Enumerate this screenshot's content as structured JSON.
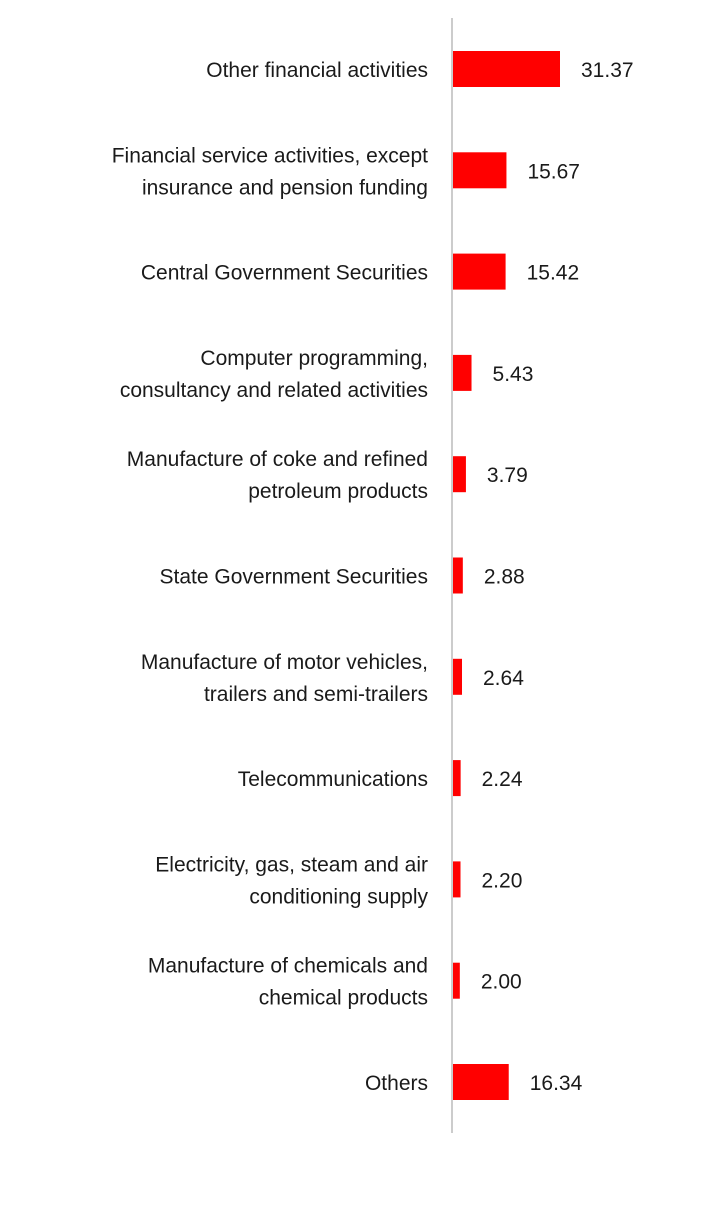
{
  "chart_data": {
    "type": "bar",
    "orientation": "horizontal",
    "categories": [
      [
        "Other financial activities"
      ],
      [
        "Financial service activities, except",
        "insurance and pension funding"
      ],
      [
        "Central Government Securities"
      ],
      [
        "Computer programming,",
        "consultancy and related activities"
      ],
      [
        "Manufacture of coke and refined",
        "petroleum products"
      ],
      [
        "State Government Securities"
      ],
      [
        "Manufacture of motor vehicles,",
        "trailers and semi-trailers"
      ],
      [
        "Telecommunications"
      ],
      [
        "Electricity, gas, steam and air",
        "conditioning supply"
      ],
      [
        "Manufacture of chemicals and",
        "chemical products"
      ],
      [
        "Others"
      ]
    ],
    "values": [
      31.37,
      15.67,
      15.42,
      5.43,
      3.79,
      2.88,
      2.64,
      2.24,
      2.2,
      2.0,
      16.34
    ],
    "value_labels": [
      "31.37",
      "15.67",
      "15.42",
      "5.43",
      "3.79",
      "2.88",
      "2.64",
      "2.24",
      "2.20",
      "2.00",
      "16.34"
    ],
    "title": "",
    "xlabel": "",
    "ylabel": "",
    "xlim": [
      0,
      31.37
    ],
    "grid": false,
    "legend": "none",
    "bar_color": "#ff0000",
    "axis_color": "#cccccc",
    "text_color": "#1a1a1a"
  }
}
